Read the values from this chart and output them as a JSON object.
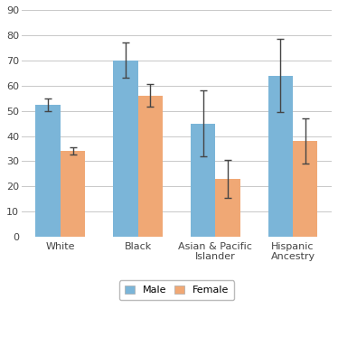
{
  "categories": [
    "White",
    "Black",
    "Asian & Pacific\nIslander",
    "Hispanic\nAncestry"
  ],
  "male_values": [
    52.5,
    70.0,
    45.0,
    64.0
  ],
  "female_values": [
    34.0,
    56.0,
    23.0,
    38.0
  ],
  "male_errors": [
    2.5,
    7.0,
    13.0,
    14.5
  ],
  "female_errors": [
    1.5,
    4.5,
    7.5,
    9.0
  ],
  "male_color": "#7bb5d8",
  "female_color": "#f0a875",
  "bar_width": 0.32,
  "ylim": [
    0,
    90
  ],
  "yticks": [
    0,
    10,
    20,
    30,
    40,
    50,
    60,
    70,
    80,
    90
  ],
  "legend_labels": [
    "Male",
    "Female"
  ],
  "grid_color": "#c8c8c8",
  "background_color": "#ffffff",
  "error_capsize": 3,
  "error_color": "#444444",
  "tick_fontsize": 8,
  "xlabel_fontsize": 8
}
